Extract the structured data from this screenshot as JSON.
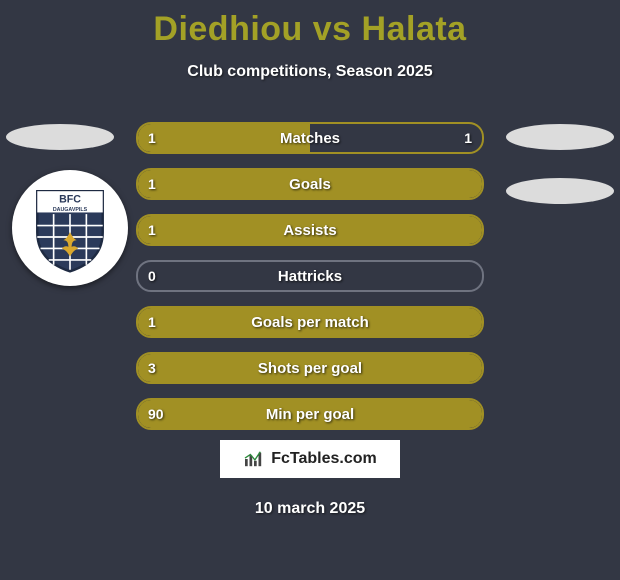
{
  "title": "Diedhiou vs Halata",
  "subtitle": "Club competitions, Season 2025",
  "date": "10 march 2025",
  "footer_brand": "FcTables.com",
  "club_logo": {
    "text_top": "BFC",
    "text_bottom": "DAUGAVPILS",
    "shield_fill": "#2b3a5a",
    "shield_stroke": "#1e2a42",
    "fleur_color": "#d9a82e"
  },
  "colors": {
    "title": "#a3a126",
    "bar_fill": "#a19024",
    "bar_border_active": "#a19024",
    "bar_border_empty": "#6f7380",
    "background": "#333744",
    "text": "#ffffff"
  },
  "bars": [
    {
      "label": "Matches",
      "left_val": "1",
      "right_val": "1",
      "fill_pct": 50,
      "filled": true
    },
    {
      "label": "Goals",
      "left_val": "1",
      "right_val": "",
      "fill_pct": 100,
      "filled": true
    },
    {
      "label": "Assists",
      "left_val": "1",
      "right_val": "",
      "fill_pct": 100,
      "filled": true
    },
    {
      "label": "Hattricks",
      "left_val": "0",
      "right_val": "",
      "fill_pct": 0,
      "filled": false
    },
    {
      "label": "Goals per match",
      "left_val": "1",
      "right_val": "",
      "fill_pct": 100,
      "filled": true
    },
    {
      "label": "Shots per goal",
      "left_val": "3",
      "right_val": "",
      "fill_pct": 100,
      "filled": true
    },
    {
      "label": "Min per goal",
      "left_val": "90",
      "right_val": "",
      "fill_pct": 100,
      "filled": true
    }
  ]
}
